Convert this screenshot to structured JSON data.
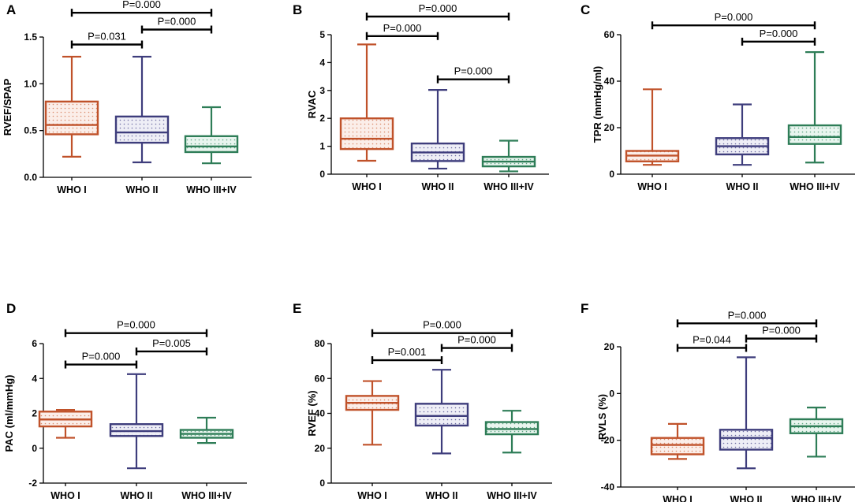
{
  "chart_data": [
    {
      "panel": "A",
      "type": "boxplot",
      "ylabel": "RVEF/SPAP",
      "ylim": [
        0,
        1.5
      ],
      "yticks": [
        0.0,
        0.5,
        1.0,
        1.5
      ],
      "ytick_labels": [
        "0.0",
        "0.5",
        "1.0",
        "1.5"
      ],
      "categories": [
        "WHO I",
        "WHO II",
        "WHO III+IV"
      ],
      "boxes": [
        {
          "min": 0.22,
          "q1": 0.46,
          "median": 0.56,
          "q3": 0.81,
          "max": 1.29
        },
        {
          "min": 0.16,
          "q1": 0.37,
          "median": 0.48,
          "q3": 0.65,
          "max": 1.29
        },
        {
          "min": 0.15,
          "q1": 0.27,
          "median": 0.33,
          "q3": 0.44,
          "max": 0.75
        }
      ],
      "brackets": [
        {
          "from": 0,
          "to": 2,
          "label": "P=0.000",
          "value": 1.76
        },
        {
          "from": 0,
          "to": 1,
          "label": "P=0.031",
          "value": 1.42
        },
        {
          "from": 1,
          "to": 2,
          "label": "P=0.000",
          "value": 1.58
        }
      ]
    },
    {
      "panel": "B",
      "type": "boxplot",
      "ylabel": "RVAC",
      "ylim": [
        0,
        5
      ],
      "yticks": [
        0,
        1,
        2,
        3,
        4,
        5
      ],
      "ytick_labels": [
        "0",
        "1",
        "2",
        "3",
        "4",
        "5"
      ],
      "categories": [
        "WHO I",
        "WHO II",
        "WHO III+IV"
      ],
      "boxes": [
        {
          "min": 0.48,
          "q1": 0.9,
          "median": 1.27,
          "q3": 2.0,
          "max": 4.65
        },
        {
          "min": 0.2,
          "q1": 0.47,
          "median": 0.78,
          "q3": 1.1,
          "max": 3.02
        },
        {
          "min": 0.1,
          "q1": 0.28,
          "median": 0.45,
          "q3": 0.62,
          "max": 1.2
        }
      ],
      "brackets": [
        {
          "from": 0,
          "to": 2,
          "label": "P=0.000",
          "value": 5.65
        },
        {
          "from": 0,
          "to": 1,
          "label": "P=0.000",
          "value": 4.95
        },
        {
          "from": 1,
          "to": 2,
          "label": "P=0.000",
          "value": 3.4
        }
      ]
    },
    {
      "panel": "C",
      "type": "boxplot",
      "ylabel": "TPR (mmHg/ml)",
      "ylim": [
        0,
        60
      ],
      "yticks": [
        0,
        20,
        40,
        60
      ],
      "ytick_labels": [
        "0",
        "20",
        "40",
        "60"
      ],
      "categories": [
        "WHO I",
        "WHO II",
        "WHO III+IV"
      ],
      "boxes": [
        {
          "min": 4.0,
          "q1": 5.5,
          "median": 8.0,
          "q3": 10.0,
          "max": 36.5
        },
        {
          "min": 4.0,
          "q1": 8.5,
          "median": 12.0,
          "q3": 15.5,
          "max": 30.0
        },
        {
          "min": 5.0,
          "q1": 13.0,
          "median": 16.0,
          "q3": 21.0,
          "max": 52.5
        }
      ],
      "brackets": [
        {
          "from": 0,
          "to": 2,
          "label": "P=0.000",
          "value": 64
        },
        {
          "from": 1,
          "to": 2,
          "label": "P=0.000",
          "value": 57
        }
      ]
    },
    {
      "panel": "D",
      "type": "boxplot",
      "ylabel": "PAC (ml/mmHg)",
      "ylim": [
        -2,
        6
      ],
      "yticks": [
        -2,
        0,
        2,
        4,
        6
      ],
      "ytick_labels": [
        "-2",
        "0",
        "2",
        "4",
        "6"
      ],
      "categories": [
        "WHO I",
        "WHO II",
        "WHO III+IV"
      ],
      "boxes": [
        {
          "min": 0.6,
          "q1": 1.25,
          "median": 1.65,
          "q3": 2.1,
          "max": 2.2
        },
        {
          "min": -1.15,
          "q1": 0.7,
          "median": 0.98,
          "q3": 1.38,
          "max": 4.25
        },
        {
          "min": 0.3,
          "q1": 0.6,
          "median": 0.82,
          "q3": 1.05,
          "max": 1.75
        }
      ],
      "brackets": [
        {
          "from": 0,
          "to": 2,
          "label": "P=0.000",
          "value": 6.6
        },
        {
          "from": 0,
          "to": 1,
          "label": "P=0.000",
          "value": 4.8
        },
        {
          "from": 1,
          "to": 2,
          "label": "P=0.005",
          "value": 5.55
        }
      ]
    },
    {
      "panel": "E",
      "type": "boxplot",
      "ylabel": "RVEF (%)",
      "ylim": [
        0,
        80
      ],
      "yticks": [
        0,
        20,
        40,
        60,
        80
      ],
      "ytick_labels": [
        "0",
        "20",
        "40",
        "60",
        "80"
      ],
      "categories": [
        "WHO I",
        "WHO II",
        "WHO III+IV"
      ],
      "boxes": [
        {
          "min": 22,
          "q1": 42,
          "median": 46,
          "q3": 50,
          "max": 58.5
        },
        {
          "min": 17,
          "q1": 33,
          "median": 38.5,
          "q3": 45.5,
          "max": 65
        },
        {
          "min": 17.5,
          "q1": 28,
          "median": 31,
          "q3": 35,
          "max": 41.5
        }
      ],
      "brackets": [
        {
          "from": 0,
          "to": 2,
          "label": "P=0.000",
          "value": 86
        },
        {
          "from": 0,
          "to": 1,
          "label": "P=0.001",
          "value": 70.5
        },
        {
          "from": 1,
          "to": 2,
          "label": "P=0.000",
          "value": 77.5
        }
      ]
    },
    {
      "panel": "F",
      "type": "boxplot",
      "ylabel": "RVLS (%)",
      "ylim": [
        -40,
        20
      ],
      "yticks": [
        -40,
        -20,
        0,
        20
      ],
      "ytick_labels": [
        "-40",
        "-20",
        "0",
        "20"
      ],
      "categories": [
        "WHO I",
        "WHO II",
        "WHO III+IV"
      ],
      "boxes": [
        {
          "min": -28,
          "q1": -26,
          "median": -22,
          "q3": -19,
          "max": -13
        },
        {
          "min": -32,
          "q1": -24,
          "median": -19,
          "q3": -15.5,
          "max": 15.5
        },
        {
          "min": -27,
          "q1": -17,
          "median": -14,
          "q3": -11,
          "max": -6
        }
      ],
      "brackets": [
        {
          "from": 0,
          "to": 2,
          "label": "P=0.000",
          "value": 30
        },
        {
          "from": 0,
          "to": 1,
          "label": "P=0.044",
          "value": 19.5
        },
        {
          "from": 1,
          "to": 2,
          "label": "P=0.000",
          "value": 23.5
        }
      ]
    }
  ],
  "colors": {
    "group1": "#c0522a",
    "group2": "#3e3d7c",
    "group3": "#2e7d57",
    "bracket": "#000000"
  }
}
